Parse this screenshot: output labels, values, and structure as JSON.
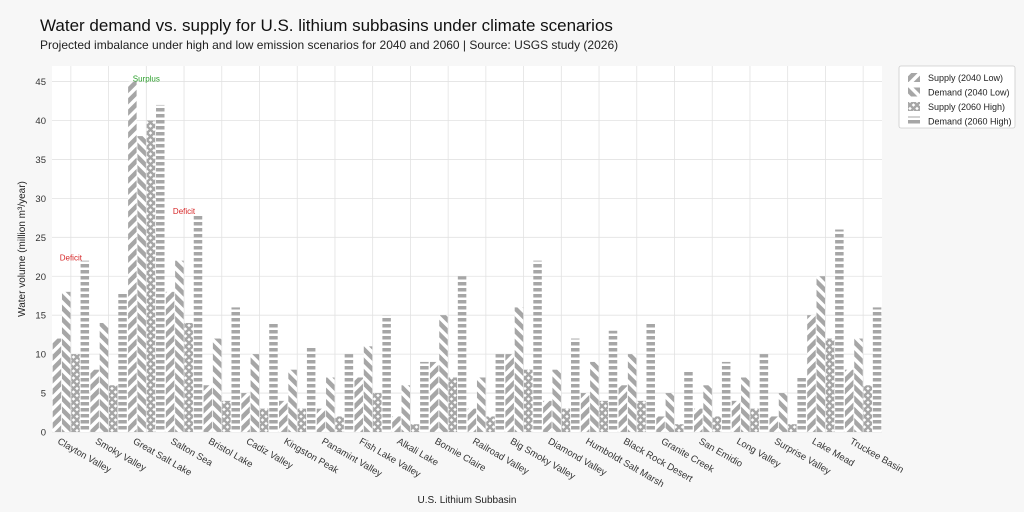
{
  "chart_data": {
    "type": "bar",
    "title": "Water demand vs. supply for U.S. lithium subbasins under climate scenarios",
    "subtitle": "Projected imbalance under high and low emission scenarios for 2040 and 2060 | Source: USGS study (2026)",
    "xlabel": "U.S. Lithium Subbasin",
    "ylabel": "Water volume (million m³/year)",
    "ylim": [
      0,
      47
    ],
    "yticks": [
      0,
      5,
      10,
      15,
      20,
      25,
      30,
      35,
      40,
      45
    ],
    "grid": true,
    "legend_position": "top-right",
    "categories": [
      "Clayton Valley",
      "Smoky Valley",
      "Great Salt Lake",
      "Salton Sea",
      "Bristol Lake",
      "Cadiz Valley",
      "Kingston Peak",
      "Panamint Valley",
      "Fish Lake Valley",
      "Alkali Lake",
      "Bonnie Claire",
      "Railroad Valley",
      "Big Smoky Valley",
      "Diamond Valley",
      "Humboldt Salt Marsh",
      "Black Rock Desert",
      "Granite Creek",
      "San Emidio",
      "Long Valley",
      "Surprise Valley",
      "Lake Mead",
      "Truckee Basin"
    ],
    "series": [
      {
        "name": "Supply (2040 Low)",
        "pattern": "diag-right",
        "values": [
          12,
          8,
          45,
          18,
          6,
          5,
          4,
          3,
          7,
          2,
          9,
          3,
          10,
          4,
          5,
          6,
          2,
          3,
          4,
          2,
          15,
          8
        ]
      },
      {
        "name": "Demand (2040 Low)",
        "pattern": "diag-left",
        "values": [
          18,
          14,
          38,
          22,
          12,
          10,
          8,
          7,
          11,
          6,
          15,
          7,
          16,
          8,
          9,
          10,
          5,
          6,
          7,
          5,
          20,
          12
        ]
      },
      {
        "name": "Supply (2060 High)",
        "pattern": "cross",
        "values": [
          10,
          6,
          40,
          14,
          4,
          3,
          3,
          2,
          5,
          1,
          7,
          2,
          8,
          3,
          4,
          4,
          1,
          2,
          3,
          1,
          12,
          6
        ]
      },
      {
        "name": "Demand (2060 High)",
        "pattern": "horizontal",
        "values": [
          22,
          18,
          42,
          28,
          16,
          14,
          11,
          10,
          15,
          9,
          20,
          10,
          22,
          12,
          13,
          14,
          8,
          9,
          10,
          7,
          26,
          16
        ]
      }
    ],
    "annotations": [
      {
        "text": "Deficit",
        "category": "Clayton Valley",
        "y": 22,
        "color": "#d62728"
      },
      {
        "text": "Surplus",
        "category": "Great Salt Lake",
        "y": 45,
        "color": "#2ca02c"
      },
      {
        "text": "Deficit",
        "category": "Salton Sea",
        "y": 28,
        "color": "#d62728"
      }
    ],
    "colors": {
      "bar": "#a6a6a6",
      "grid": "#e2e2e2"
    }
  }
}
